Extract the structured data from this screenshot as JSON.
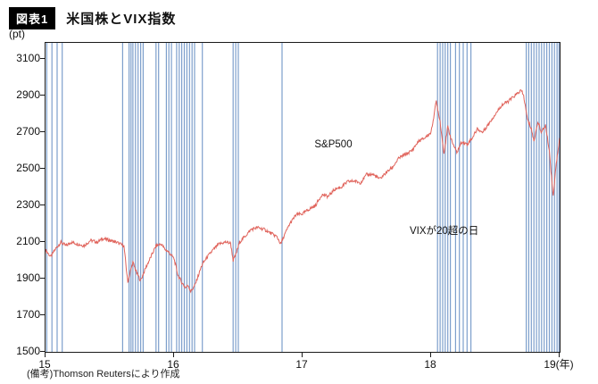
{
  "header": {
    "badge": "図表1",
    "title": "米国株とVIX指数"
  },
  "footer": {
    "source": "(備考)Thomson Reutersにより作成"
  },
  "chart_data": {
    "type": "line",
    "title": "米国株とVIX指数",
    "y_unit": "(pt)",
    "x_unit": "(年)",
    "xlim": [
      15,
      19
    ],
    "ylim": [
      1500,
      3190
    ],
    "y_ticks": [
      1500,
      1700,
      1900,
      2100,
      2300,
      2500,
      2700,
      2900,
      3100
    ],
    "x_ticks": [
      15,
      16,
      17,
      18,
      19
    ],
    "x_tick_labels": [
      "15",
      "16",
      "17",
      "18",
      "19(年)"
    ],
    "grid": false,
    "legend_position": "none",
    "line_color": "#e0635b",
    "vix_line_color": "#7d9fcc",
    "annotations": [
      {
        "text": "S&P500",
        "x": 17.1,
        "y": 2625
      },
      {
        "text": "VIXが20超の日",
        "x": 17.84,
        "y": 2165
      }
    ],
    "series": [
      {
        "name": "S&P500",
        "x": [
          15.0,
          15.04,
          15.08,
          15.12,
          15.16,
          15.2,
          15.25,
          15.3,
          15.35,
          15.4,
          15.45,
          15.5,
          15.55,
          15.58,
          15.61,
          15.64,
          15.66,
          15.68,
          15.71,
          15.74,
          15.78,
          15.82,
          15.86,
          15.9,
          15.93,
          15.96,
          16.0,
          16.03,
          16.06,
          16.09,
          16.11,
          16.13,
          16.16,
          16.19,
          16.22,
          16.26,
          16.3,
          16.35,
          16.4,
          16.44,
          16.46,
          16.48,
          16.51,
          16.55,
          16.6,
          16.65,
          16.7,
          16.75,
          16.8,
          16.83,
          16.86,
          16.9,
          16.95,
          17.0,
          17.05,
          17.1,
          17.15,
          17.2,
          17.25,
          17.3,
          17.35,
          17.4,
          17.45,
          17.5,
          17.55,
          17.6,
          17.65,
          17.7,
          17.75,
          17.8,
          17.85,
          17.9,
          17.95,
          18.0,
          18.04,
          18.07,
          18.1,
          18.13,
          18.16,
          18.2,
          18.24,
          18.28,
          18.32,
          18.36,
          18.4,
          18.45,
          18.5,
          18.55,
          18.6,
          18.65,
          18.7,
          18.72,
          18.75,
          18.78,
          18.8,
          18.83,
          18.86,
          18.89,
          18.92,
          18.95,
          18.97,
          19.0
        ],
        "y": [
          2058,
          2020,
          2065,
          2100,
          2080,
          2100,
          2090,
          2080,
          2110,
          2100,
          2120,
          2110,
          2100,
          2090,
          2080,
          1880,
          1940,
          1990,
          1930,
          1890,
          1960,
          2020,
          2080,
          2090,
          2060,
          2045,
          2010,
          1920,
          1880,
          1850,
          1865,
          1830,
          1860,
          1920,
          1980,
          2020,
          2055,
          2090,
          2100,
          2095,
          2000,
          2030,
          2100,
          2130,
          2170,
          2180,
          2170,
          2150,
          2130,
          2090,
          2140,
          2200,
          2250,
          2255,
          2280,
          2300,
          2360,
          2350,
          2390,
          2400,
          2430,
          2435,
          2425,
          2470,
          2470,
          2445,
          2480,
          2510,
          2560,
          2580,
          2600,
          2650,
          2670,
          2700,
          2870,
          2760,
          2585,
          2730,
          2655,
          2590,
          2650,
          2635,
          2670,
          2720,
          2700,
          2750,
          2800,
          2850,
          2870,
          2900,
          2930,
          2900,
          2770,
          2720,
          2650,
          2760,
          2700,
          2740,
          2600,
          2350,
          2510,
          2670
        ]
      }
    ],
    "vix_over20_days_x": [
      15.01,
      15.05,
      15.09,
      15.13,
      15.6,
      15.65,
      15.665,
      15.68,
      15.7,
      15.72,
      15.74,
      15.76,
      15.86,
      15.88,
      15.94,
      15.96,
      15.98,
      16.02,
      16.04,
      16.06,
      16.08,
      16.1,
      16.12,
      16.14,
      16.16,
      16.22,
      16.46,
      16.48,
      16.5,
      16.84,
      18.05,
      18.07,
      18.09,
      18.11,
      18.13,
      18.15,
      18.19,
      18.22,
      18.25,
      18.28,
      18.31,
      18.74,
      18.76,
      18.78,
      18.8,
      18.82,
      18.84,
      18.86,
      18.88,
      18.9,
      18.92,
      18.94,
      18.96,
      18.98,
      18.995
    ]
  }
}
